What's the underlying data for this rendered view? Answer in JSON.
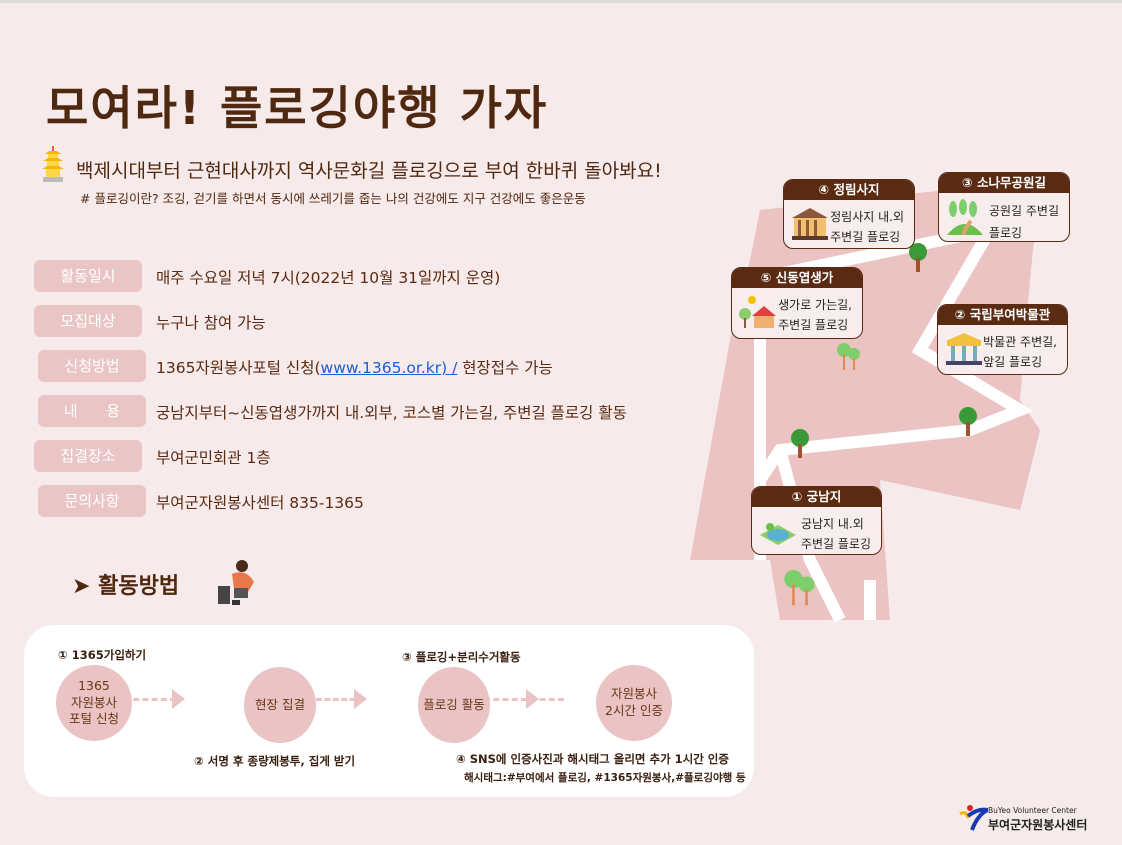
{
  "title": "모여라! 플로깅야행 가자",
  "subtitle": "백제시대부터 근현대사까지 역사문화길 플로깅으로 부여 한바퀴 돌아봐요!",
  "note": "# 플로깅이란? 조깅, 걷기를 하면서 동시에 쓰레기를 줍는 나의 건강에도 지구 건강에도 좋은운동",
  "info": [
    {
      "label": "활동일시",
      "value": "매주 수요일 저녁 7시(2022년 10월 31일까지 운영)"
    },
    {
      "label": "모집대상",
      "value": "누구나 참여 가능"
    },
    {
      "label": "신청방법",
      "value_pre": "1365자원봉사포털 신청(",
      "link": "www.1365.or.kr) /",
      "value_post": " 현장접수 가능"
    },
    {
      "label": "내      용",
      "value": "궁남지부터~신동엽생가까지 내.외부, 코스별 가는길, 주변길 플로깅 활동"
    },
    {
      "label": "집결장소",
      "value": "부여군민회관 1층"
    },
    {
      "label": "문의사항",
      "value": "부여군자원봉사센터 835-1365"
    }
  ],
  "method_title": "활동방법",
  "flow": {
    "steps": [
      "1365\n자원봉사\n포털 신청",
      "현장 집결",
      "플로깅 활동",
      "자원봉사\n2시간 인증"
    ],
    "notes": [
      "① 1365가입하기",
      "② 서명 후 종량제봉투, 집게 받기",
      "③ 플로깅+분리수거활동",
      "④ SNS에 인증사진과 해시태그 올리면 추가 1시간 인증",
      "해시태그:#부여에서 플로깅, #1365자원봉사,#플로깅야행 등"
    ]
  },
  "map": [
    {
      "title": "④ 정림사지",
      "desc": "정림사지 내.외\n주변길 플로깅",
      "icon": "temple-icon"
    },
    {
      "title": "③ 소나무공원길",
      "desc": "공원길 주변길\n플로깅",
      "icon": "pine-park-icon"
    },
    {
      "title": "⑤ 신동엽생가",
      "desc": "생가로 가는길,\n주변길 플로깅",
      "icon": "house-icon"
    },
    {
      "title": "② 국립부여박물관",
      "desc": "박물관 주변길,\n앞길 플로깅",
      "icon": "museum-icon"
    },
    {
      "title": "① 궁남지",
      "desc": "궁남지 내.외\n주변길 플로깅",
      "icon": "pond-icon"
    }
  ],
  "logo": {
    "en": "BuYeo Volunteer Center",
    "ko": "부여군자원봉사센터"
  },
  "colors": {
    "background": "#f7eaea",
    "brown": "#5a2a12",
    "pink": "#eac4c4",
    "link": "#1a5fd0"
  }
}
